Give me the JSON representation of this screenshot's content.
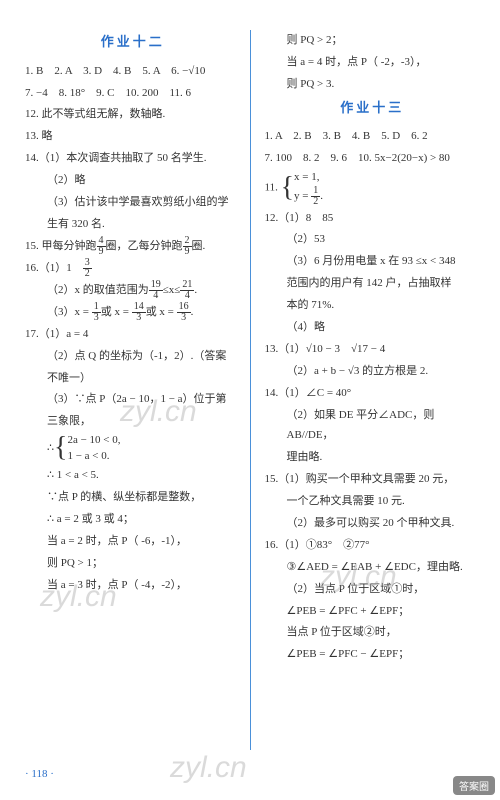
{
  "page_number": "· 118 ·",
  "watermarks": [
    "zyl.cn",
    "zyl.cn",
    "zyl.cn",
    "zyl.cn"
  ],
  "logo": "答案圈",
  "logo_sub": "M.XQE.CN",
  "left": {
    "title": "作业十二",
    "row1": "1. B　2. A　3. D　4. B　5. A　6. −√10",
    "row2": "7. −4　8. 18°　9. C　10. 200　11. 6",
    "l12": "12. 此不等式组无解，数轴略.",
    "l13": "13. 略",
    "l14": "14.（1）本次调查共抽取了 50 名学生.",
    "l14_2": "（2）略",
    "l14_3a": "（3）估计该中学最喜欢剪纸小组的学",
    "l14_3b": "生有 320 名.",
    "l15a": "15. 甲每分钟跑",
    "l15b": "圈，乙每分钟跑",
    "l15c": "圈.",
    "l16_1": "16.（1）1　",
    "l16_2a": "（2）x 的取值范围为",
    "l16_2b": "≤x≤",
    "l16_2c": ".",
    "l16_3a": "（3）x =",
    "l16_3b": "或 x =",
    "l16_3c": "或 x =",
    "l16_3d": ".",
    "l17_1": "17.（1）a = 4",
    "l17_2a": "（2）点 Q 的坐标为（-1，2）.（答案",
    "l17_2b": "不唯一）",
    "l17_3a": "（3）∵点 P（2a − 10，1 − a）位于第",
    "l17_3b": "三象限，",
    "l17_3c_pre": "∴",
    "l17_3c1": "2a − 10 < 0,",
    "l17_3c2": "1 − a < 0.",
    "l17_3d": "∴ 1 < a < 5.",
    "l17_3e": "∵点 P 的横、纵坐标都是整数，",
    "l17_3f": "∴ a = 2 或 3 或 4；",
    "l17_3g": "当 a = 2 时，点 P（ -6，-1），",
    "l17_3h": "则 PQ > 1；",
    "l17_3i": "当 a = 3 时，点 P（ -4，-2），"
  },
  "right": {
    "rtop1": "则 PQ > 2；",
    "rtop2": "当 a = 4 时，点 P（ -2，-3），",
    "rtop3": "则 PQ > 3.",
    "title": "作业十三",
    "row1": "1. A　2. B　3. B　4. B　5. D　6. 2",
    "row2": "7. 100　8. 2　9. 6　10. 5x−2(20−x) > 80",
    "l11a": "11.",
    "l11b1": "x = 1,",
    "l11b2": "y = ",
    "l11b3": ".",
    "l12_1": "12.（1）8　85",
    "l12_2": "（2）53",
    "l12_3a": "（3）6 月份用电量 x 在 93 ≤x < 348",
    "l12_3b": "范围内的用户有 142 户，占抽取样",
    "l12_3c": "本的 71%.",
    "l12_4": "（4）略",
    "l13_1": "13.（1）√10 − 3　√17 − 4",
    "l13_2": "（2）a + b − √3 的立方根是 2.",
    "l14_1": "14.（1）∠C = 40°",
    "l14_2a": "（2）如果 DE 平分∠ADC，则 AB//DE，",
    "l14_2b": "理由略.",
    "l15_1a": "15.（1）购买一个甲种文具需要 20 元，",
    "l15_1b": "一个乙种文具需要 10 元.",
    "l15_2": "（2）最多可以购买 20 个甲种文具.",
    "l16_1": "16.（1）①83°　②77°",
    "l16_1b": "③∠AED = ∠EAB + ∠EDC，理由略.",
    "l16_2a": "（2）当点 P 位于区域①时，",
    "l16_2b": "∠PEB = ∠PFC + ∠EPF；",
    "l16_2c": "当点 P 位于区域②时，",
    "l16_2d": "∠PEB = ∠PFC − ∠EPF；"
  },
  "fractions": {
    "f4_9": {
      "n": "4",
      "d": "9"
    },
    "f2_9": {
      "n": "2",
      "d": "9"
    },
    "f3_2": {
      "n": "3",
      "d": "2"
    },
    "f19_4": {
      "n": "19",
      "d": "4"
    },
    "f21_4": {
      "n": "21",
      "d": "4"
    },
    "f1_3": {
      "n": "1",
      "d": "3"
    },
    "f14_3": {
      "n": "14",
      "d": "3"
    },
    "f16_3": {
      "n": "16",
      "d": "3"
    },
    "f1_2": {
      "n": "1",
      "d": "2"
    }
  },
  "colors": {
    "title_color": "#2a6fc9",
    "text_color": "#333333",
    "divider_color": "#4a90d9",
    "background": "#ffffff"
  },
  "typography": {
    "body_fontsize": 11,
    "title_fontsize": 13,
    "line_height": 1.9
  }
}
